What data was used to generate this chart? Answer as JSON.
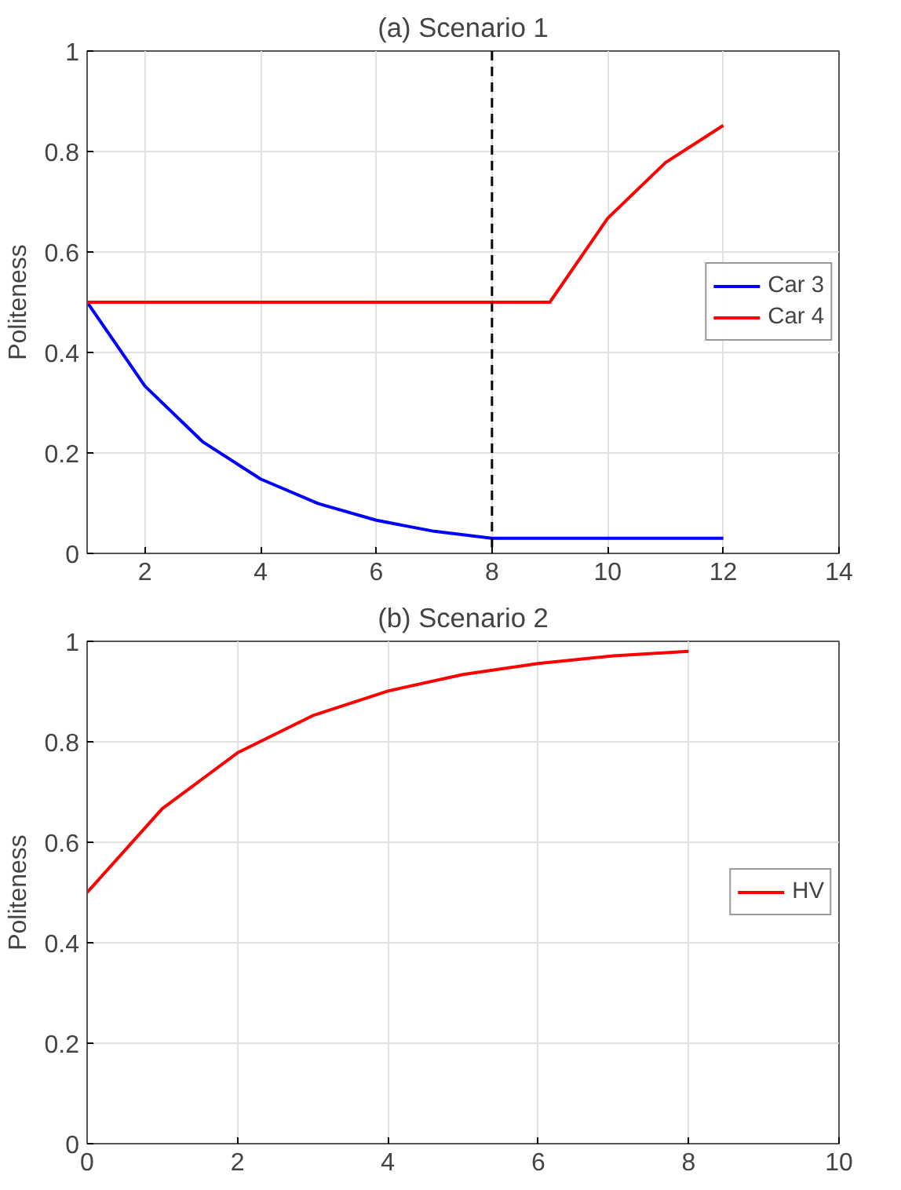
{
  "chart_data": [
    {
      "type": "line",
      "title": "(a) Scenario 1",
      "ylabel": "Politeness",
      "x": [
        1,
        2,
        3,
        4,
        5,
        6,
        7,
        8,
        9,
        10,
        11,
        12
      ],
      "series": [
        {
          "name": "Car 3",
          "color": "#0000ff",
          "values": [
            0.5,
            0.333,
            0.222,
            0.148,
            0.099,
            0.066,
            0.044,
            0.03,
            0.03,
            0.03,
            0.03,
            0.03
          ]
        },
        {
          "name": "Car 4",
          "color": "#ff0000",
          "values": [
            0.5,
            0.5,
            0.5,
            0.5,
            0.5,
            0.5,
            0.5,
            0.5,
            0.5,
            0.667,
            0.778,
            0.852
          ]
        }
      ],
      "xlim": [
        1,
        14
      ],
      "xticks": [
        2,
        4,
        6,
        8,
        10,
        12,
        14
      ],
      "ylim": [
        0,
        1
      ],
      "yticks": [
        0,
        0.2,
        0.4,
        0.6,
        0.8,
        1
      ],
      "ref_lines": [
        {
          "axis": "x",
          "value": 8,
          "color": "#000000",
          "line_style": "dashed"
        }
      ],
      "grid": true,
      "legend": "right"
    },
    {
      "type": "line",
      "title": "(b) Scenario 2",
      "ylabel": "Politeness",
      "x": [
        0,
        1,
        2,
        3,
        4,
        5,
        6,
        7,
        8
      ],
      "series": [
        {
          "name": "HV",
          "color": "#ff0000",
          "values": [
            0.5,
            0.667,
            0.778,
            0.852,
            0.901,
            0.934,
            0.956,
            0.971,
            0.98
          ]
        }
      ],
      "xlim": [
        0,
        10
      ],
      "xticks": [
        0,
        2,
        4,
        6,
        8,
        10
      ],
      "ylim": [
        0,
        1
      ],
      "yticks": [
        0,
        0.2,
        0.4,
        0.6,
        0.8,
        1
      ],
      "grid": true,
      "legend": "right"
    }
  ]
}
